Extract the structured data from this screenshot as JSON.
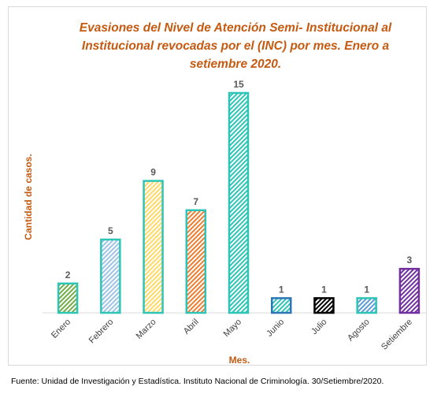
{
  "chart_data": {
    "type": "bar",
    "title": "Evasiones del Nivel de Atención Semi- Institucional al Institucional revocadas por el (INC) por mes. Enero a setiembre 2020.",
    "xlabel": "Mes.",
    "ylabel": "Cantidad de casos.",
    "categories": [
      "Enero",
      "Febrero",
      "Marzo",
      "Abril",
      "Mayo",
      "Junio",
      "Julio",
      "Agosto",
      "Setiembre"
    ],
    "values": [
      2,
      5,
      9,
      7,
      15,
      1,
      1,
      1,
      3
    ],
    "ylim": [
      0,
      15
    ],
    "grid": false,
    "legend": "none",
    "bar_styles": [
      {
        "border": "#2ec4b6",
        "hatch": "#70ad47",
        "bg": "#ffffff"
      },
      {
        "border": "#2ec4b6",
        "hatch": "#9dc3e6",
        "bg": "#ffffff"
      },
      {
        "border": "#2ec4b6",
        "hatch": "#ffd966",
        "bg": "#ffffff"
      },
      {
        "border": "#2ec4b6",
        "hatch": "#ed7d31",
        "bg": "#ffffff"
      },
      {
        "border": "#2ec4b6",
        "hatch": "#2ec4b6",
        "bg": "#ffffff"
      },
      {
        "border": "#2e75b6",
        "hatch": "#2ec4b6",
        "bg": "#ffffff"
      },
      {
        "border": "#000000",
        "hatch": "#000000",
        "bg": "#ffffff"
      },
      {
        "border": "#2ec4b6",
        "hatch": "#5b9bd5",
        "bg": "#ffffff"
      },
      {
        "border": "#7030a0",
        "hatch": "#7030a0",
        "bg": "#ffffff"
      }
    ],
    "colors": {
      "title": "#c55a11",
      "axis_title": "#c55a11",
      "data_label": "#595959",
      "tick_label": "#404040",
      "axis_line": "#d9d9d9"
    }
  },
  "source": "Fuente: Unidad de Investigación y Estadística. Instituto Nacional de Criminología. 30/Setiembre/2020."
}
